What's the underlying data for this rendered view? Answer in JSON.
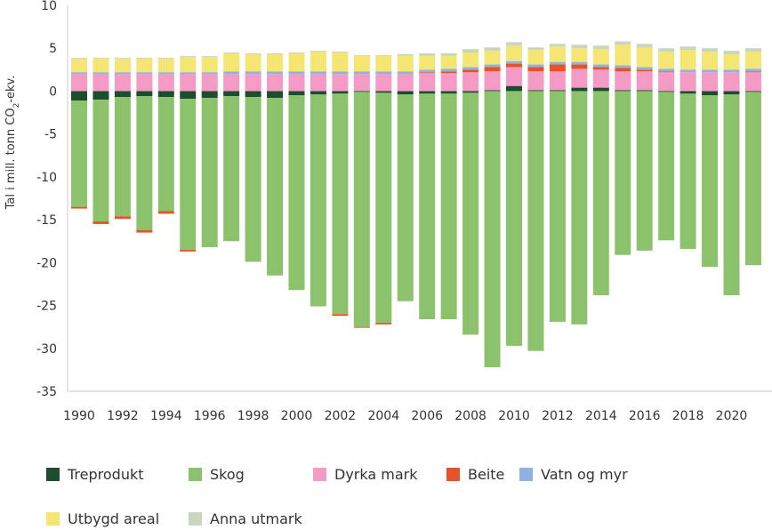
{
  "chart_data": {
    "type": "bar",
    "stacked": true,
    "title": "",
    "xlabel": "",
    "ylabel": "Tal i mill. tonn CO₂-ekv.",
    "ylim": [
      -35,
      10
    ],
    "yticks": [
      10,
      5,
      0,
      -5,
      -10,
      -15,
      -20,
      -25,
      -30,
      -35
    ],
    "xtick_labels": [
      "1990",
      "1992",
      "1994",
      "1996",
      "1998",
      "2000",
      "2002",
      "2004",
      "2006",
      "2008",
      "2010",
      "2012",
      "2014",
      "2016",
      "2018",
      "2020"
    ],
    "categories": [
      "1990",
      "1991",
      "1992",
      "1993",
      "1994",
      "1995",
      "1996",
      "1997",
      "1998",
      "1999",
      "2000",
      "2001",
      "2002",
      "2003",
      "2004",
      "2005",
      "2006",
      "2007",
      "2008",
      "2009",
      "2010",
      "2011",
      "2012",
      "2013",
      "2014",
      "2015",
      "2016",
      "2017",
      "2018",
      "2019",
      "2020",
      "2021"
    ],
    "series": [
      {
        "name": "Treprodukt",
        "color": "#1b4d2e",
        "values": [
          -1.1,
          -1.0,
          -0.7,
          -0.6,
          -0.7,
          -0.9,
          -0.8,
          -0.6,
          -0.7,
          -0.8,
          -0.5,
          -0.4,
          -0.3,
          -0.1,
          -0.2,
          -0.4,
          -0.3,
          -0.3,
          -0.2,
          0.1,
          0.6,
          0.1,
          0.1,
          0.4,
          0.4,
          0.1,
          0.1,
          -0.1,
          -0.3,
          -0.5,
          -0.4,
          -0.1
        ]
      },
      {
        "name": "Skog",
        "color": "#8cc26b",
        "values": [
          -12.4,
          -14.2,
          -13.9,
          -15.6,
          -13.3,
          -17.6,
          -17.4,
          -16.9,
          -19.2,
          -20.7,
          -22.7,
          -24.7,
          -25.7,
          -27.4,
          -26.8,
          -24.1,
          -26.3,
          -26.3,
          -28.2,
          -32.2,
          -29.7,
          -30.3,
          -26.9,
          -27.2,
          -23.8,
          -19.1,
          -18.6,
          -17.3,
          -18.1,
          -20.0,
          -23.4,
          -20.2
        ]
      },
      {
        "name": "Dyrka mark",
        "color": "#f39ac5",
        "values": [
          2.0,
          2.0,
          2.0,
          2.0,
          2.0,
          2.0,
          2.0,
          2.0,
          2.0,
          2.0,
          2.0,
          2.0,
          2.0,
          2.0,
          2.0,
          2.0,
          2.1,
          2.1,
          2.2,
          2.2,
          2.2,
          2.2,
          2.2,
          2.2,
          2.1,
          2.2,
          2.2,
          2.2,
          2.2,
          2.2,
          2.2,
          2.2
        ]
      },
      {
        "name": "Beite",
        "color": "#e5532a",
        "values": [
          -0.2,
          -0.3,
          -0.3,
          -0.3,
          -0.3,
          -0.2,
          0.0,
          0.0,
          0.0,
          0.0,
          0.0,
          0.0,
          -0.2,
          -0.1,
          -0.2,
          0.0,
          0.1,
          0.2,
          0.3,
          0.5,
          0.4,
          0.5,
          0.8,
          0.5,
          0.3,
          0.4,
          0.2,
          0.1,
          0.0,
          0.0,
          0.0,
          0.1
        ]
      },
      {
        "name": "Vatn og myr",
        "color": "#8fb2e0",
        "values": [
          0.2,
          0.2,
          0.2,
          0.2,
          0.2,
          0.2,
          0.2,
          0.3,
          0.3,
          0.3,
          0.3,
          0.3,
          0.3,
          0.3,
          0.3,
          0.3,
          0.3,
          0.3,
          0.3,
          0.3,
          0.3,
          0.3,
          0.3,
          0.3,
          0.3,
          0.3,
          0.3,
          0.3,
          0.3,
          0.3,
          0.3,
          0.3
        ]
      },
      {
        "name": "Utbygd areal",
        "color": "#f5e572",
        "values": [
          1.6,
          1.6,
          1.6,
          1.6,
          1.6,
          1.8,
          1.8,
          2.1,
          2.0,
          2.0,
          2.1,
          2.3,
          2.2,
          1.8,
          1.8,
          1.8,
          1.6,
          1.5,
          1.7,
          1.6,
          1.8,
          1.7,
          1.8,
          1.6,
          1.8,
          2.4,
          2.3,
          2.0,
          2.3,
          2.1,
          1.8,
          2.0
        ]
      },
      {
        "name": "Anna utmark",
        "color": "#c9d6be",
        "values": [
          0.1,
          0.1,
          0.1,
          0.1,
          0.1,
          0.1,
          0.1,
          0.1,
          0.1,
          0.1,
          0.1,
          0.1,
          0.1,
          0.1,
          0.1,
          0.2,
          0.3,
          0.3,
          0.4,
          0.4,
          0.4,
          0.3,
          0.3,
          0.4,
          0.4,
          0.4,
          0.4,
          0.4,
          0.4,
          0.4,
          0.4,
          0.4
        ]
      }
    ],
    "grid": false,
    "legend_position": "bottom"
  },
  "legend": {
    "items": [
      {
        "label": "Treprodukt",
        "color": "#1b4d2e"
      },
      {
        "label": "Skog",
        "color": "#8cc26b"
      },
      {
        "label": "Dyrka mark",
        "color": "#f39ac5"
      },
      {
        "label": "Beite",
        "color": "#e5532a"
      },
      {
        "label": "Vatn og myr",
        "color": "#8fb2e0"
      },
      {
        "label": "Utbygd areal",
        "color": "#f5e572"
      },
      {
        "label": "Anna utmark",
        "color": "#c9d6be"
      }
    ]
  }
}
